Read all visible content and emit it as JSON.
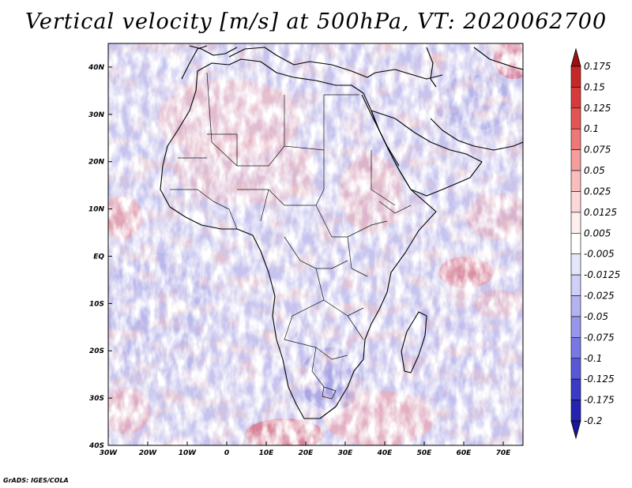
{
  "title": "Vertical velocity [m/s] at 500hPa, VT: 2020062700",
  "credit": "GrADS: IGES/COLA",
  "map": {
    "lon_range": [
      -30,
      75
    ],
    "lat_range": [
      -40,
      45
    ],
    "lat_ticks": [
      {
        "value": 40,
        "label": "40N"
      },
      {
        "value": 30,
        "label": "30N"
      },
      {
        "value": 20,
        "label": "20N"
      },
      {
        "value": 10,
        "label": "10N"
      },
      {
        "value": 0,
        "label": "EQ"
      },
      {
        "value": -10,
        "label": "10S"
      },
      {
        "value": -20,
        "label": "20S"
      },
      {
        "value": -30,
        "label": "30S"
      },
      {
        "value": -40,
        "label": "40S"
      }
    ],
    "lon_ticks": [
      {
        "value": -30,
        "label": "30W"
      },
      {
        "value": -20,
        "label": "20W"
      },
      {
        "value": -10,
        "label": "10W"
      },
      {
        "value": 0,
        "label": "0"
      },
      {
        "value": 10,
        "label": "10E"
      },
      {
        "value": 20,
        "label": "20E"
      },
      {
        "value": 30,
        "label": "30E"
      },
      {
        "value": 40,
        "label": "40E"
      },
      {
        "value": 50,
        "label": "50E"
      },
      {
        "value": 60,
        "label": "60E"
      },
      {
        "value": 70,
        "label": "70E"
      }
    ]
  },
  "colorbar": {
    "levels": [
      {
        "label": "0.175",
        "color": "#b01b1b"
      },
      {
        "label": "0.15",
        "color": "#c62828"
      },
      {
        "label": "0.125",
        "color": "#d83a3a"
      },
      {
        "label": "0.1",
        "color": "#e45454"
      },
      {
        "label": "0.075",
        "color": "#ee7878"
      },
      {
        "label": "0.05",
        "color": "#f59c9c"
      },
      {
        "label": "0.025",
        "color": "#fabdbd"
      },
      {
        "label": "0.0125",
        "color": "#fdd8d8"
      },
      {
        "label": "0.005",
        "color": "#ffeeee"
      },
      {
        "label": "-0.005",
        "color": "#ffffff"
      },
      {
        "label": "-0.0125",
        "color": "#e6e6fb"
      },
      {
        "label": "-0.025",
        "color": "#cfcff7"
      },
      {
        "label": "-0.05",
        "color": "#b3b3f1"
      },
      {
        "label": "-0.075",
        "color": "#9696ea"
      },
      {
        "label": "-0.1",
        "color": "#7878e2"
      },
      {
        "label": "-0.125",
        "color": "#5858d6"
      },
      {
        "label": "-0.175",
        "color": "#3a3ac6"
      },
      {
        "label": "-0.2",
        "color": "#2424b0"
      }
    ],
    "top_arrow_color": "#a01010",
    "bottom_arrow_color": "#18189c"
  }
}
